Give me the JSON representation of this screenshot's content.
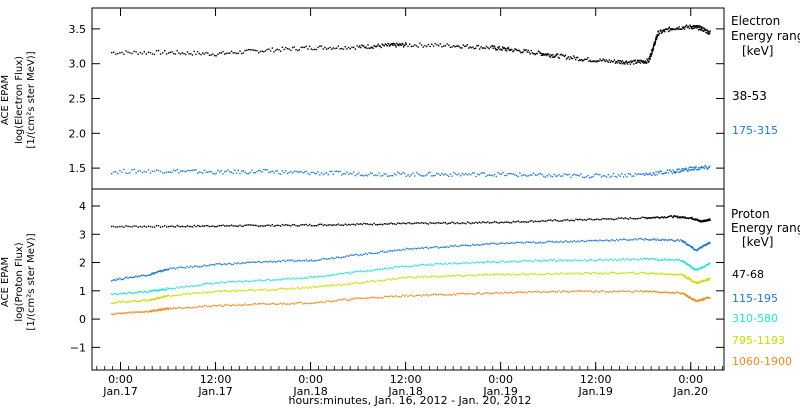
{
  "chart_data": [
    {
      "type": "scatter",
      "panel": "electron",
      "ylabel_lines": [
        "ACE EPAM",
        "log(Electron Flux)",
        "[1/(cm²s ster MeV)]"
      ],
      "legend_title": [
        "Electron",
        "Energy ranges",
        "[keV]"
      ],
      "ylim": [
        1.2,
        3.8
      ],
      "yticks": [
        1.5,
        2.0,
        2.5,
        3.0,
        3.5
      ],
      "ytick_labels": [
        "1.5",
        "2.0",
        "2.5",
        "3.0",
        "3.5"
      ],
      "series": [
        {
          "name": "38-53",
          "color": "#000000",
          "points": [
            [
              -0.1,
              3.17
            ],
            [
              0.5,
              3.17
            ],
            [
              1,
              3.15
            ],
            [
              1.5,
              3.2
            ],
            [
              2,
              3.24
            ],
            [
              2.5,
              3.25
            ],
            [
              2.8,
              3.27
            ],
            [
              3,
              3.28
            ],
            [
              3.5,
              3.27
            ],
            [
              3.9,
              3.24
            ],
            [
              4.1,
              3.21
            ],
            [
              4.4,
              3.16
            ],
            [
              4.6,
              3.12
            ],
            [
              4.9,
              3.07
            ],
            [
              5.2,
              3.04
            ],
            [
              5.4,
              3.03
            ],
            [
              5.55,
              3.05
            ],
            [
              5.6,
              3.25
            ],
            [
              5.65,
              3.45
            ],
            [
              5.8,
              3.52
            ],
            [
              6,
              3.54
            ],
            [
              6.1,
              3.52
            ],
            [
              6.2,
              3.45
            ]
          ]
        },
        {
          "name": "175-315",
          "color": "#1e78d2",
          "points": [
            [
              -0.1,
              1.46
            ],
            [
              0.5,
              1.47
            ],
            [
              1,
              1.45
            ],
            [
              1.5,
              1.46
            ],
            [
              2,
              1.44
            ],
            [
              2.5,
              1.43
            ],
            [
              3,
              1.42
            ],
            [
              3.5,
              1.42
            ],
            [
              4,
              1.42
            ],
            [
              4.5,
              1.4
            ],
            [
              5,
              1.4
            ],
            [
              5.5,
              1.42
            ],
            [
              5.8,
              1.46
            ],
            [
              6,
              1.5
            ],
            [
              6.2,
              1.52
            ]
          ]
        }
      ]
    },
    {
      "type": "scatter",
      "panel": "proton",
      "ylabel_lines": [
        "ACE EPAM",
        "log(Proton Flux)",
        "[1/(cm²s ster MeV)]"
      ],
      "legend_title": [
        "Proton",
        "Energy ranges",
        "[keV]"
      ],
      "ylim": [
        -1.8,
        4.6
      ],
      "yticks": [
        -1,
        0,
        1,
        2,
        3,
        4
      ],
      "ytick_labels": [
        "−1",
        "0",
        "1",
        "2",
        "3",
        "4"
      ],
      "x_range_days": [
        -0.3,
        6.35
      ],
      "xticks": [
        {
          "pos": 0,
          "time": "0:00",
          "date": "Jan.17"
        },
        {
          "pos": 1,
          "time": "12:00",
          "date": "Jan.17"
        },
        {
          "pos": 2,
          "time": "0:00",
          "date": "Jan.18"
        },
        {
          "pos": 3,
          "time": "12:00",
          "date": "Jan.18"
        },
        {
          "pos": 4,
          "time": "0:00",
          "date": "Jan.19"
        },
        {
          "pos": 5,
          "time": "12:00",
          "date": "Jan.19"
        },
        {
          "pos": 6,
          "time": "0:00",
          "date": "Jan.20"
        }
      ],
      "xlabel": "hours:minutes, Jan. 16, 2012 - Jan. 20, 2012",
      "series": [
        {
          "name": "47-68",
          "color": "#000000",
          "points": [
            [
              -0.1,
              3.3
            ],
            [
              0.5,
              3.3
            ],
            [
              1,
              3.32
            ],
            [
              1.5,
              3.33
            ],
            [
              2,
              3.35
            ],
            [
              2.5,
              3.38
            ],
            [
              3,
              3.4
            ],
            [
              3.5,
              3.42
            ],
            [
              4,
              3.45
            ],
            [
              4.5,
              3.5
            ],
            [
              5,
              3.55
            ],
            [
              5.5,
              3.6
            ],
            [
              5.8,
              3.65
            ],
            [
              6,
              3.6
            ],
            [
              6.1,
              3.48
            ],
            [
              6.2,
              3.55
            ]
          ]
        },
        {
          "name": "115-195",
          "color": "#1e78d2",
          "points": [
            [
              -0.1,
              1.4
            ],
            [
              0.3,
              1.6
            ],
            [
              0.5,
              1.8
            ],
            [
              1,
              1.95
            ],
            [
              1.5,
              2.05
            ],
            [
              2,
              2.1
            ],
            [
              2.5,
              2.3
            ],
            [
              3,
              2.5
            ],
            [
              3.5,
              2.6
            ],
            [
              4,
              2.7
            ],
            [
              4.5,
              2.75
            ],
            [
              5,
              2.8
            ],
            [
              5.5,
              2.85
            ],
            [
              5.9,
              2.8
            ],
            [
              6.05,
              2.45
            ],
            [
              6.2,
              2.75
            ]
          ]
        },
        {
          "name": "310-580",
          "color": "#28e0d8",
          "points": [
            [
              -0.1,
              0.9
            ],
            [
              0.3,
              1.0
            ],
            [
              0.5,
              1.1
            ],
            [
              1,
              1.3
            ],
            [
              1.5,
              1.4
            ],
            [
              2,
              1.5
            ],
            [
              2.5,
              1.7
            ],
            [
              3,
              1.9
            ],
            [
              3.5,
              2.0
            ],
            [
              4,
              2.05
            ],
            [
              4.5,
              2.1
            ],
            [
              5,
              2.1
            ],
            [
              5.5,
              2.15
            ],
            [
              5.9,
              2.1
            ],
            [
              6.05,
              1.75
            ],
            [
              6.2,
              2.0
            ]
          ]
        },
        {
          "name": "795-1193",
          "color": "#c8e000",
          "points": [
            [
              -0.1,
              0.6
            ],
            [
              0.3,
              0.7
            ],
            [
              0.5,
              0.85
            ],
            [
              1,
              1.0
            ],
            [
              1.5,
              1.05
            ],
            [
              2,
              1.15
            ],
            [
              2.5,
              1.3
            ],
            [
              3,
              1.5
            ],
            [
              3.5,
              1.55
            ],
            [
              4,
              1.6
            ],
            [
              4.5,
              1.62
            ],
            [
              5,
              1.65
            ],
            [
              5.5,
              1.65
            ],
            [
              5.9,
              1.6
            ],
            [
              6.05,
              1.3
            ],
            [
              6.2,
              1.45
            ]
          ]
        },
        {
          "name": "1060-1900",
          "color": "#f08a1e",
          "points": [
            [
              -0.1,
              0.2
            ],
            [
              0.3,
              0.3
            ],
            [
              0.5,
              0.4
            ],
            [
              1,
              0.5
            ],
            [
              1.5,
              0.55
            ],
            [
              2,
              0.6
            ],
            [
              2.5,
              0.75
            ],
            [
              3,
              0.85
            ],
            [
              3.5,
              0.9
            ],
            [
              4,
              0.95
            ],
            [
              4.5,
              1.0
            ],
            [
              5,
              1.0
            ],
            [
              5.5,
              1.0
            ],
            [
              5.9,
              0.95
            ],
            [
              6.05,
              0.65
            ],
            [
              6.2,
              0.8
            ]
          ]
        }
      ]
    }
  ]
}
